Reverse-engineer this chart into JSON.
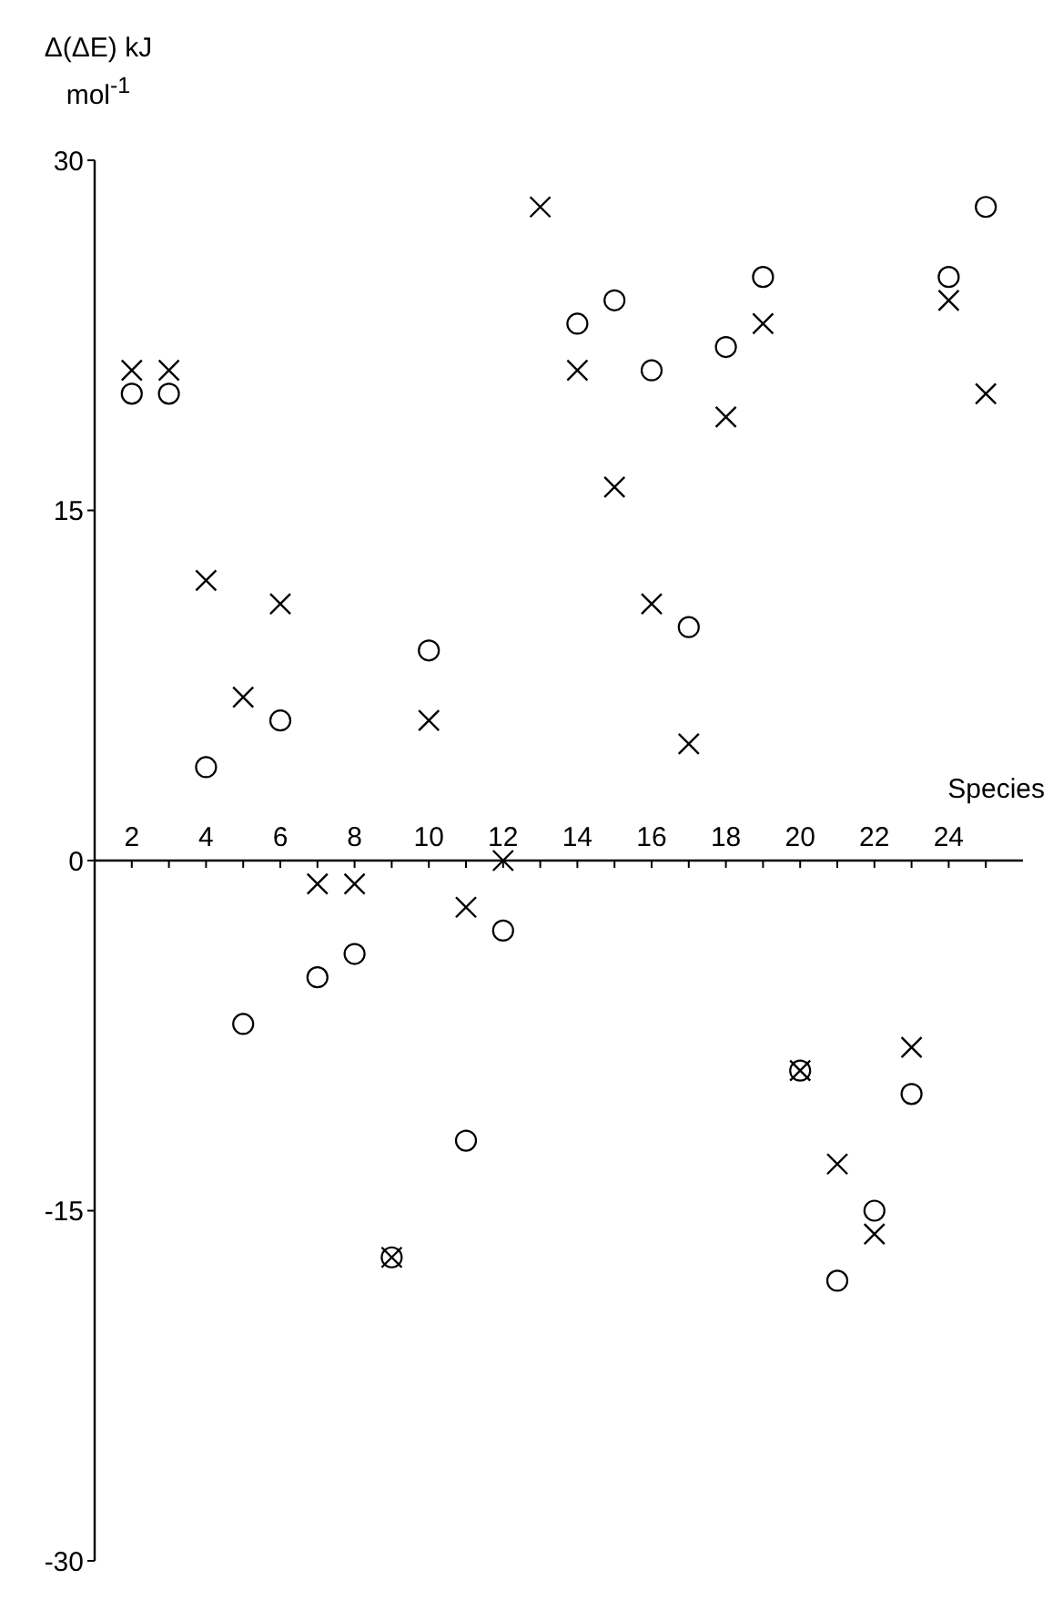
{
  "chart_data": {
    "type": "scatter",
    "ylabel": "Δ(ΔE) kJ mol$^{-1}$",
    "xlabel": "Species",
    "x": [
      2,
      3,
      4,
      5,
      6,
      7,
      8,
      9,
      10,
      11,
      12,
      13,
      14,
      15,
      16,
      17,
      18,
      19,
      20,
      21,
      22,
      23,
      24,
      25
    ],
    "series": [
      {
        "color": "#000000",
        "marker": "circle",
        "values": [
          20,
          20,
          4,
          -7,
          6,
          -5,
          -4,
          -17,
          9,
          -12,
          -3,
          null,
          23,
          24,
          21,
          10,
          22,
          25,
          -9,
          -18,
          -15,
          -10,
          25,
          28
        ]
      },
      {
        "color": "#000000",
        "marker": "cross",
        "values": [
          21,
          21,
          12,
          7,
          11,
          -1,
          -1,
          -17,
          6,
          -2,
          0,
          28,
          21,
          16,
          11,
          5,
          19,
          23,
          -9,
          -13,
          -16,
          -8,
          24,
          20
        ]
      }
    ],
    "xlim": [
      1,
      26
    ],
    "xticks": [
      2,
      {
        "value": 3,
        "label": null
      },
      4,
      {
        "value": 5,
        "label": null
      },
      6,
      {
        "value": 7,
        "label": null
      },
      8,
      {
        "value": 9,
        "label": null
      },
      10,
      {
        "value": 11,
        "label": null
      },
      12,
      {
        "value": 13,
        "label": null
      },
      14,
      {
        "value": 15,
        "label": null
      },
      16,
      {
        "value": 17,
        "label": null
      },
      18,
      {
        "value": 19,
        "label": null
      },
      20,
      {
        "value": 21,
        "label": null
      },
      22,
      {
        "value": 23,
        "label": null
      },
      24,
      {
        "value": 25,
        "label": null
      }
    ],
    "ylim": [
      -30,
      30
    ],
    "yticks": [
      -30,
      -15,
      0,
      15,
      30
    ]
  }
}
